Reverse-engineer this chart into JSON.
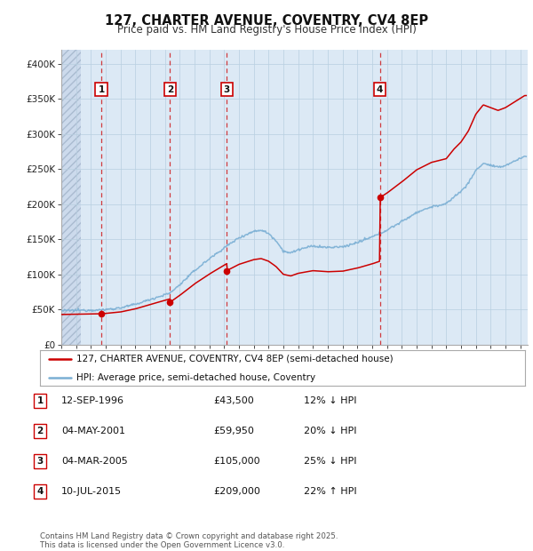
{
  "title": "127, CHARTER AVENUE, COVENTRY, CV4 8EP",
  "subtitle": "Price paid vs. HM Land Registry's House Price Index (HPI)",
  "background_color": "#dce9f5",
  "plot_bg_color": "#dce9f5",
  "grid_color": "#b8cfe0",
  "sale_line_color": "#cc0000",
  "hpi_line_color": "#7aafd4",
  "ylim": [
    0,
    420000
  ],
  "yticks": [
    0,
    50000,
    100000,
    150000,
    200000,
    250000,
    300000,
    350000,
    400000
  ],
  "ytick_labels": [
    "£0",
    "£50K",
    "£100K",
    "£150K",
    "£200K",
    "£250K",
    "£300K",
    "£350K",
    "£400K"
  ],
  "xlim_start": 1994.0,
  "xlim_end": 2025.5,
  "sale_dates": [
    1996.7,
    2001.34,
    2005.17,
    2015.52
  ],
  "sale_prices": [
    43500,
    59950,
    105000,
    209000
  ],
  "sale_labels": [
    "1",
    "2",
    "3",
    "4"
  ],
  "legend_sale_label": "127, CHARTER AVENUE, COVENTRY, CV4 8EP (semi-detached house)",
  "legend_hpi_label": "HPI: Average price, semi-detached house, Coventry",
  "transactions": [
    {
      "label": "1",
      "date": "12-SEP-1996",
      "price": "£43,500",
      "hpi": "12% ↓ HPI"
    },
    {
      "label": "2",
      "date": "04-MAY-2001",
      "price": "£59,950",
      "hpi": "20% ↓ HPI"
    },
    {
      "label": "3",
      "date": "04-MAR-2005",
      "price": "£105,000",
      "hpi": "25% ↓ HPI"
    },
    {
      "label": "4",
      "date": "10-JUL-2015",
      "price": "£209,000",
      "hpi": "22% ↑ HPI"
    }
  ],
  "footer": "Contains HM Land Registry data © Crown copyright and database right 2025.\nThis data is licensed under the Open Government Licence v3.0."
}
